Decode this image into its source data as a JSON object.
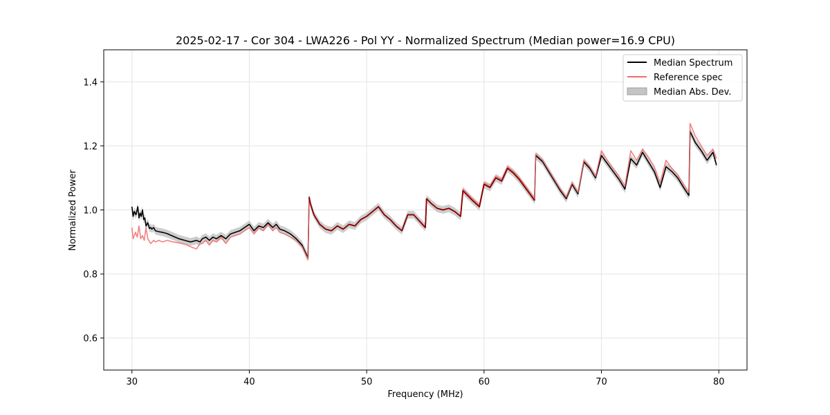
{
  "chart_data": {
    "type": "line",
    "title": "2025-02-17 - Cor 304 - LWA226 - Pol YY - Normalized Spectrum (Median power=16.9 CPU)",
    "xlabel": "Frequency (MHz)",
    "ylabel": "Normalized Power",
    "xlim": [
      27.6,
      82.4
    ],
    "ylim": [
      0.5,
      1.5
    ],
    "xticks": [
      30,
      40,
      50,
      60,
      70,
      80
    ],
    "yticks": [
      0.6,
      0.8,
      1.0,
      1.2,
      1.4
    ],
    "grid": true,
    "legend_position": "upper right",
    "legend": [
      "Median Spectrum",
      "Reference spec",
      "Median Abs. Dev."
    ],
    "colors": {
      "median": "#000000",
      "reference": "#f06b6b",
      "overlap": "#8b0000",
      "mad": "#c4c4c4"
    },
    "series": [
      {
        "name": "Median Spectrum",
        "x": [
          30.0,
          30.1,
          30.2,
          30.35,
          30.5,
          30.6,
          30.7,
          30.8,
          30.9,
          31.0,
          31.1,
          31.2,
          31.35,
          31.5,
          31.6,
          31.7,
          31.85,
          32.0,
          32.3,
          32.6,
          33.0,
          33.5,
          34.0,
          34.5,
          35.0,
          35.5,
          35.8,
          36.0,
          36.3,
          36.6,
          36.9,
          37.2,
          37.6,
          38.0,
          38.4,
          38.8,
          39.2,
          39.6,
          40.0,
          40.4,
          40.8,
          41.2,
          41.6,
          42.0,
          42.3,
          42.6,
          43.0,
          43.5,
          44.0,
          44.5,
          45.0,
          45.1,
          45.2,
          45.5,
          46.0,
          46.5,
          47.0,
          47.5,
          48.0,
          48.5,
          49.0,
          49.5,
          50.0,
          50.5,
          51.0,
          51.5,
          52.0,
          52.5,
          53.0,
          53.5,
          54.0,
          54.5,
          55.0,
          55.1,
          55.5,
          56.0,
          56.5,
          57.0,
          57.5,
          58.0,
          58.2,
          59.0,
          59.6,
          60.0,
          60.5,
          61.0,
          61.5,
          62.0,
          62.5,
          63.0,
          63.5,
          64.0,
          64.3,
          64.4,
          65.0,
          65.5,
          66.0,
          66.5,
          67.0,
          67.5,
          68.0,
          68.5,
          69.0,
          69.5,
          70.0,
          70.5,
          71.0,
          71.5,
          72.0,
          72.5,
          73.0,
          73.5,
          74.0,
          74.5,
          75.0,
          75.5,
          76.0,
          76.5,
          77.0,
          77.45,
          77.55,
          78.0,
          78.5,
          79.0,
          79.5,
          79.8
        ],
        "y": [
          1.01,
          0.98,
          0.995,
          0.985,
          1.01,
          0.975,
          0.99,
          0.98,
          1.0,
          0.97,
          0.975,
          0.95,
          0.96,
          0.942,
          0.945,
          0.94,
          0.945,
          0.935,
          0.932,
          0.93,
          0.926,
          0.918,
          0.91,
          0.905,
          0.9,
          0.905,
          0.9,
          0.91,
          0.915,
          0.905,
          0.915,
          0.91,
          0.92,
          0.91,
          0.925,
          0.93,
          0.935,
          0.945,
          0.955,
          0.935,
          0.95,
          0.945,
          0.96,
          0.945,
          0.955,
          0.94,
          0.935,
          0.925,
          0.91,
          0.89,
          0.85,
          1.04,
          1.02,
          0.985,
          0.955,
          0.94,
          0.935,
          0.95,
          0.94,
          0.955,
          0.95,
          0.97,
          0.98,
          0.995,
          1.01,
          0.985,
          0.97,
          0.95,
          0.935,
          0.985,
          0.985,
          0.965,
          0.945,
          1.035,
          1.02,
          1.005,
          1.0,
          1.005,
          0.995,
          0.98,
          1.06,
          1.03,
          1.01,
          1.08,
          1.07,
          1.1,
          1.09,
          1.13,
          1.115,
          1.095,
          1.07,
          1.045,
          1.03,
          1.17,
          1.15,
          1.12,
          1.09,
          1.06,
          1.035,
          1.08,
          1.05,
          1.15,
          1.13,
          1.1,
          1.17,
          1.145,
          1.12,
          1.095,
          1.065,
          1.16,
          1.14,
          1.18,
          1.15,
          1.12,
          1.07,
          1.135,
          1.12,
          1.1,
          1.07,
          1.045,
          1.245,
          1.21,
          1.185,
          1.155,
          1.18,
          1.14
        ]
      },
      {
        "name": "Reference spec",
        "x": [
          30.0,
          30.1,
          30.3,
          30.45,
          30.6,
          30.75,
          30.9,
          31.05,
          31.2,
          31.35,
          31.6,
          31.85,
          32.0,
          32.3,
          32.6,
          33.0,
          33.5,
          34.0,
          34.5,
          35.0,
          35.5,
          35.8,
          36.0,
          36.3,
          36.6,
          36.9,
          37.2,
          37.6,
          38.0,
          38.4,
          38.8,
          39.2,
          39.6,
          40.0,
          40.4,
          40.8,
          41.2,
          41.6,
          42.0,
          42.3,
          42.6,
          43.0,
          43.5,
          44.0,
          44.5,
          45.0,
          45.1,
          45.2,
          45.5,
          46.0,
          46.5,
          47.0,
          47.5,
          48.0,
          48.5,
          49.0,
          49.5,
          50.0,
          50.5,
          51.0,
          51.5,
          52.0,
          52.5,
          53.0,
          53.5,
          54.0,
          54.5,
          55.0,
          55.1,
          55.5,
          56.0,
          56.5,
          57.0,
          57.5,
          58.0,
          58.2,
          59.0,
          59.6,
          60.0,
          60.5,
          61.0,
          61.5,
          62.0,
          62.5,
          63.0,
          63.5,
          64.0,
          64.3,
          64.4,
          65.0,
          65.5,
          66.0,
          66.5,
          67.0,
          67.5,
          68.0,
          68.5,
          69.0,
          69.5,
          70.0,
          70.5,
          71.0,
          71.5,
          72.0,
          72.5,
          73.0,
          73.5,
          74.0,
          74.5,
          75.0,
          75.5,
          76.0,
          76.5,
          77.0,
          77.45,
          77.55,
          78.0,
          78.5,
          79.0,
          79.5,
          79.8
        ],
        "y": [
          0.945,
          0.91,
          0.93,
          0.915,
          0.95,
          0.91,
          0.92,
          0.905,
          0.945,
          0.91,
          0.895,
          0.905,
          0.9,
          0.905,
          0.9,
          0.905,
          0.9,
          0.897,
          0.893,
          0.885,
          0.878,
          0.895,
          0.895,
          0.905,
          0.89,
          0.905,
          0.9,
          0.915,
          0.895,
          0.915,
          0.92,
          0.925,
          0.935,
          0.945,
          0.925,
          0.945,
          0.935,
          0.955,
          0.935,
          0.945,
          0.93,
          0.925,
          0.915,
          0.905,
          0.885,
          0.845,
          1.04,
          1.02,
          0.985,
          0.955,
          0.94,
          0.935,
          0.95,
          0.94,
          0.955,
          0.95,
          0.97,
          0.98,
          0.995,
          1.01,
          0.985,
          0.97,
          0.95,
          0.935,
          0.985,
          0.985,
          0.965,
          0.945,
          1.035,
          1.02,
          1.005,
          1.0,
          1.005,
          0.995,
          0.98,
          1.065,
          1.035,
          1.015,
          1.085,
          1.075,
          1.105,
          1.095,
          1.135,
          1.12,
          1.1,
          1.075,
          1.05,
          1.035,
          1.175,
          1.155,
          1.125,
          1.095,
          1.065,
          1.04,
          1.085,
          1.055,
          1.155,
          1.135,
          1.105,
          1.185,
          1.155,
          1.13,
          1.105,
          1.075,
          1.185,
          1.155,
          1.19,
          1.165,
          1.135,
          1.085,
          1.155,
          1.13,
          1.11,
          1.08,
          1.055,
          1.27,
          1.23,
          1.2,
          1.17,
          1.19,
          1.16
        ]
      },
      {
        "name": "Median Abs. Dev.",
        "note": "shaded band around Median Spectrum",
        "half_width": 0.012
      }
    ]
  }
}
